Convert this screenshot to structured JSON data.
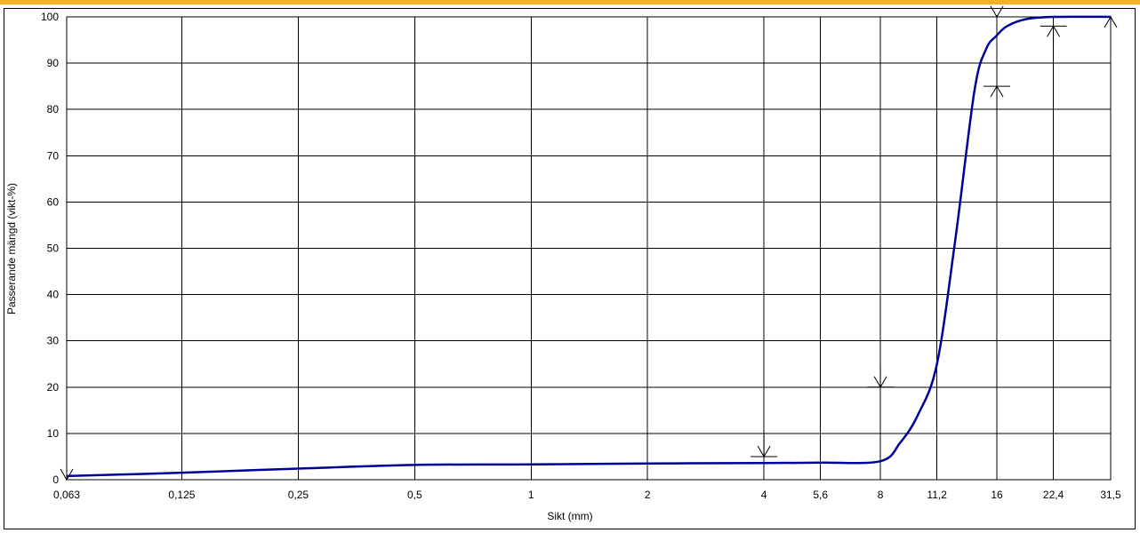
{
  "colors": {
    "accent_bar": "#f3b02a",
    "curve": "#000099",
    "grid": "#000000"
  },
  "chart_data": {
    "type": "line",
    "title": "",
    "xlabel": "Sikt (mm)",
    "ylabel": "Passerande mängd (vikt-%)",
    "x_scale": "log2",
    "x_ticks": [
      "0,063",
      "0,125",
      "0,25",
      "0,5",
      "1",
      "2",
      "4",
      "5,6",
      "8",
      "11,2",
      "16",
      "22,4",
      "31,5"
    ],
    "x_tick_values": [
      0.063,
      0.125,
      0.25,
      0.5,
      1,
      2,
      4,
      5.6,
      8,
      11.2,
      16,
      22.4,
      31.5
    ],
    "xlim": [
      0.063,
      31.5
    ],
    "ylim": [
      0,
      100
    ],
    "y_ticks": [
      0,
      10,
      20,
      30,
      40,
      50,
      60,
      70,
      80,
      90,
      100
    ],
    "grid": true,
    "series": [
      {
        "x": [
          0.063,
          0.125,
          0.25,
          0.5,
          1,
          2,
          4,
          5.6,
          8,
          9,
          10,
          11.2,
          12.5,
          14,
          15,
          16,
          17,
          19,
          22.4,
          31.5
        ],
        "y": [
          0.8,
          1.5,
          2.4,
          3.2,
          3.3,
          3.5,
          3.6,
          3.7,
          4,
          8,
          14,
          25,
          52,
          84,
          93,
          96,
          98,
          99.5,
          100,
          100
        ]
      }
    ],
    "limit_markers": [
      {
        "x": 0.063,
        "y": 0,
        "bound": "upper"
      },
      {
        "x": 4,
        "y": 5,
        "bound": "upper"
      },
      {
        "x": 8,
        "y": 20,
        "bound": "upper"
      },
      {
        "x": 16,
        "y": 85,
        "bound": "lower"
      },
      {
        "x": 16,
        "y": 100,
        "bound": "upper"
      },
      {
        "x": 22.4,
        "y": 98,
        "bound": "lower"
      },
      {
        "x": 31.5,
        "y": 100,
        "bound": "lower"
      }
    ]
  }
}
